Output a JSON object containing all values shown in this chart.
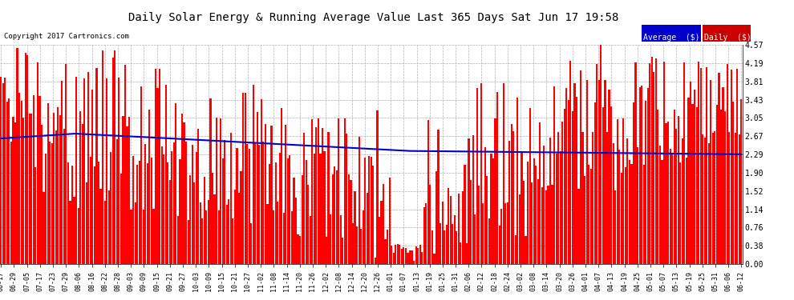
{
  "title": "Daily Solar Energy & Running Average Value Last 365 Days Sat Jun 17 19:58",
  "copyright": "Copyright 2017 Cartronics.com",
  "bar_color": "#ff0000",
  "avg_color": "#0000cc",
  "background_color": "#ffffff",
  "plot_bg_color": "#ffffff",
  "grid_color": "#b0b0b0",
  "ylim": [
    0.0,
    4.57
  ],
  "yticks": [
    0.0,
    0.38,
    0.76,
    1.14,
    1.52,
    1.9,
    2.29,
    2.67,
    3.05,
    3.43,
    3.81,
    4.19,
    4.57
  ],
  "legend_avg_label": "Average  ($)",
  "legend_daily_label": "Daily  ($)",
  "num_days": 365,
  "x_tick_labels": [
    "06-17",
    "06-29",
    "07-05",
    "07-17",
    "07-23",
    "07-29",
    "08-06",
    "08-16",
    "08-22",
    "08-28",
    "09-03",
    "09-09",
    "09-15",
    "09-21",
    "09-27",
    "10-03",
    "10-09",
    "10-15",
    "10-21",
    "10-27",
    "11-02",
    "11-08",
    "11-14",
    "11-20",
    "11-26",
    "12-02",
    "12-08",
    "12-14",
    "12-20",
    "12-26",
    "01-01",
    "01-07",
    "01-13",
    "01-19",
    "01-25",
    "01-31",
    "02-06",
    "02-12",
    "02-18",
    "02-24",
    "03-02",
    "03-08",
    "03-14",
    "03-20",
    "03-26",
    "04-01",
    "04-07",
    "04-13",
    "04-19",
    "04-25",
    "05-01",
    "05-07",
    "05-13",
    "05-19",
    "05-25",
    "05-31",
    "06-06",
    "06-12"
  ]
}
